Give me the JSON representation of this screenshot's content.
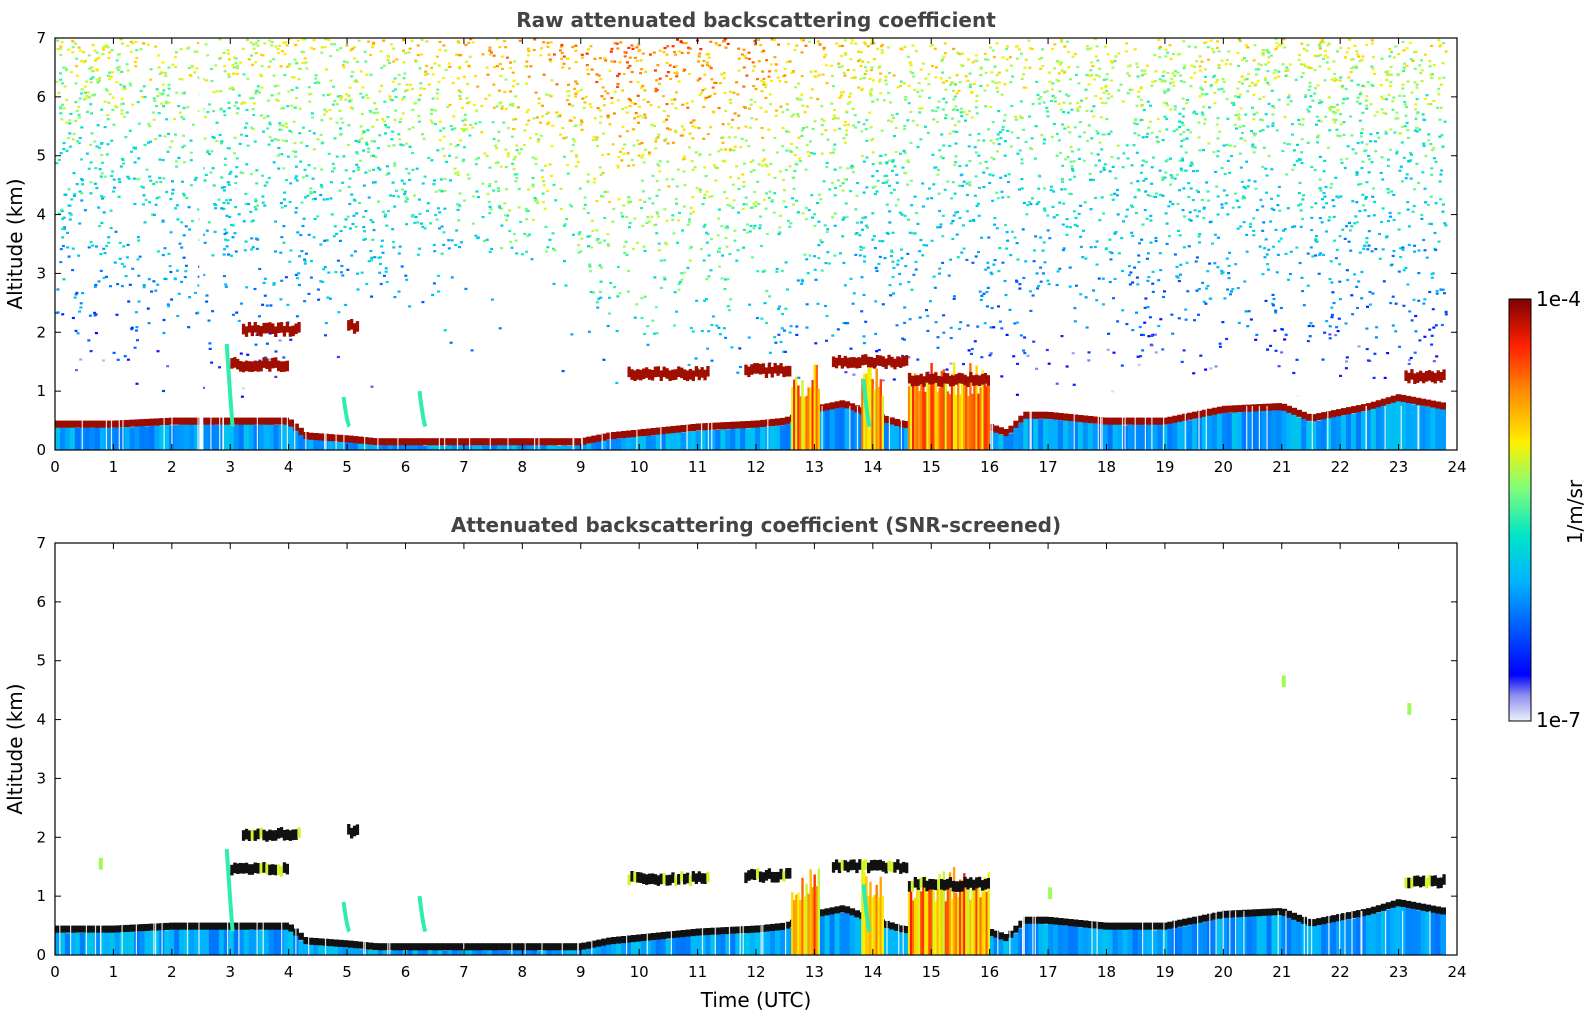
{
  "chart_data": [
    {
      "type": "heatmap",
      "title": "Raw attenuated backscattering coefficient",
      "xlabel": "",
      "ylabel": "Altitude (km)",
      "xlim": [
        0,
        24
      ],
      "ylim": [
        0,
        7
      ],
      "xticks": [
        "0",
        "1",
        "2",
        "3",
        "4",
        "5",
        "6",
        "7",
        "8",
        "9",
        "10",
        "11",
        "12",
        "13",
        "14",
        "15",
        "16",
        "17",
        "18",
        "19",
        "20",
        "21",
        "22",
        "23",
        "24"
      ],
      "yticks": [
        "0",
        "1",
        "2",
        "3",
        "4",
        "5",
        "6",
        "7"
      ],
      "screened": false,
      "boundary_layer_top_km": [
        [
          0,
          0.45
        ],
        [
          1,
          0.45
        ],
        [
          2,
          0.5
        ],
        [
          3,
          0.5
        ],
        [
          4,
          0.5
        ],
        [
          4.3,
          0.25
        ],
        [
          5,
          0.2
        ],
        [
          5.5,
          0.15
        ],
        [
          6,
          0.15
        ],
        [
          7,
          0.15
        ],
        [
          8,
          0.15
        ],
        [
          9,
          0.15
        ],
        [
          9.5,
          0.25
        ],
        [
          10,
          0.3
        ],
        [
          11,
          0.4
        ],
        [
          12,
          0.45
        ],
        [
          12.5,
          0.5
        ],
        [
          13,
          0.7
        ],
        [
          13.5,
          0.8
        ],
        [
          14,
          0.6
        ],
        [
          14.5,
          0.45
        ],
        [
          15,
          0.4
        ],
        [
          16,
          0.4
        ],
        [
          16.3,
          0.3
        ],
        [
          16.6,
          0.6
        ],
        [
          17,
          0.6
        ],
        [
          18,
          0.5
        ],
        [
          19,
          0.5
        ],
        [
          20,
          0.7
        ],
        [
          21,
          0.75
        ],
        [
          21.5,
          0.55
        ],
        [
          22,
          0.65
        ],
        [
          22.5,
          0.75
        ],
        [
          23,
          0.9
        ],
        [
          23.8,
          0.75
        ]
      ],
      "cloud_layers": [
        {
          "x0": 3.2,
          "x1": 4.2,
          "alt_km": 2.05
        },
        {
          "x0": 3.0,
          "x1": 4.0,
          "alt_km": 1.45
        },
        {
          "x0": 5.0,
          "x1": 5.2,
          "alt_km": 2.1
        },
        {
          "x0": 9.8,
          "x1": 11.2,
          "alt_km": 1.3
        },
        {
          "x0": 11.8,
          "x1": 12.6,
          "alt_km": 1.35
        },
        {
          "x0": 13.3,
          "x1": 14.6,
          "alt_km": 1.5
        },
        {
          "x0": 14.6,
          "x1": 16.0,
          "alt_km": 1.2
        },
        {
          "x0": 23.1,
          "x1": 23.8,
          "alt_km": 1.25
        }
      ],
      "precipitation_shafts": [
        [
          12.6,
          13.1
        ],
        [
          13.8,
          14.2
        ],
        [
          14.6,
          16.0
        ]
      ]
    },
    {
      "type": "heatmap",
      "title": "Attenuated backscattering coefficient (SNR-screened)",
      "xlabel": "Time (UTC)",
      "ylabel": "Altitude (km)",
      "xlim": [
        0,
        24
      ],
      "ylim": [
        0,
        7
      ],
      "xticks": [
        "0",
        "1",
        "2",
        "3",
        "4",
        "5",
        "6",
        "7",
        "8",
        "9",
        "10",
        "11",
        "12",
        "13",
        "14",
        "15",
        "16",
        "17",
        "18",
        "19",
        "20",
        "21",
        "22",
        "23",
        "24"
      ],
      "yticks": [
        "0",
        "1",
        "2",
        "3",
        "4",
        "5",
        "6",
        "7"
      ],
      "screened": true
    }
  ],
  "colorbar": {
    "max_label": "1e-4",
    "min_label": "1e-7",
    "label": "1/m/sr",
    "colormap": "jet"
  }
}
